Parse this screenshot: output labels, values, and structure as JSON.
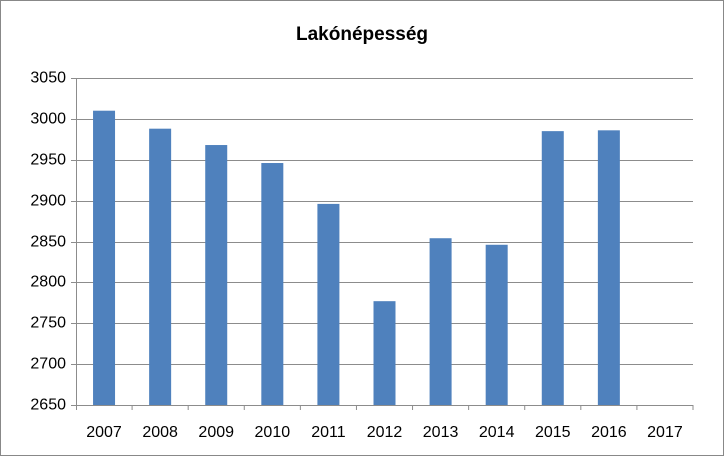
{
  "chart_data": {
    "type": "bar",
    "title": "Lakónépesség",
    "categories": [
      "2007",
      "2008",
      "2009",
      "2010",
      "2011",
      "2012",
      "2013",
      "2014",
      "2015",
      "2016",
      "2017"
    ],
    "values": [
      3010,
      2988,
      2968,
      2946,
      2896,
      2777,
      2854,
      2846,
      2985,
      2986,
      null
    ],
    "color": "#4f81bd",
    "ylim": [
      2650,
      3050
    ],
    "yticks": [
      2650,
      2700,
      2750,
      2800,
      2850,
      2900,
      2950,
      3000,
      3050
    ],
    "grid": true
  }
}
